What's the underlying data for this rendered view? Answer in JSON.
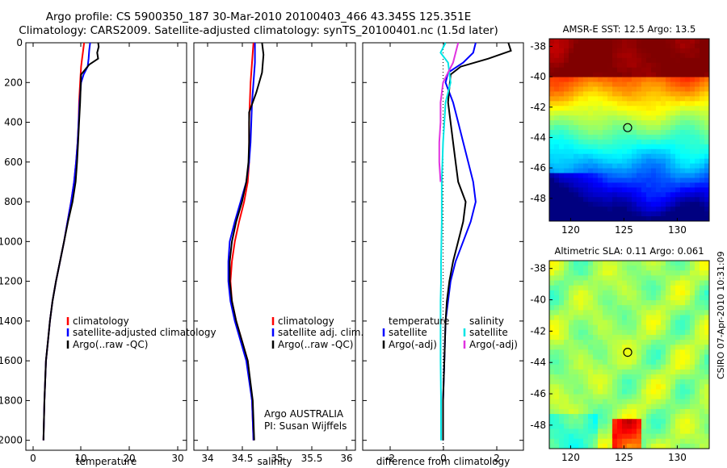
{
  "header": {
    "line1": "Argo profile: CS 5900350_187 30-Mar-2010 20100403_466 43.345S 125.351E",
    "line2": "Climatology: CARS2009. Satellite-adjusted climatology: synTS_20100401.nc (1.5d later)"
  },
  "stamp": "CSIRO 07-Apr-2010 10:31:09",
  "colors": {
    "climatology": "#ff0000",
    "satellite": "#0000ff",
    "argo": "#000000",
    "sat_diff": "#00e5e5",
    "argo_adj": "#e033e0"
  },
  "chart_data": [
    {
      "type": "line",
      "xlabel": "temperature",
      "xlim": [
        -1,
        31
      ],
      "ylim": [
        2050,
        0
      ],
      "xticks": [
        "0",
        "10",
        "20",
        "30"
      ],
      "yticks": [
        "0",
        "200",
        "400",
        "600",
        "800",
        "1000",
        "1200",
        "1400",
        "1600",
        "1800",
        "2000"
      ],
      "legend": [
        "climatology",
        "satellite-adjusted climatology",
        "Argo(..raw -QC)"
      ],
      "series": [
        {
          "key": "clim",
          "color": "#ff0000",
          "x": [
            10.6,
            10.4,
            10.2,
            10.0,
            9.9,
            9.8,
            9.6,
            9.5,
            9.3,
            9.0,
            8.6,
            8.0,
            7.3,
            6.6,
            5.8,
            5.0,
            4.3,
            3.8,
            3.4,
            3.0,
            2.7,
            2.5
          ],
          "y": [
            0,
            40,
            80,
            120,
            160,
            200,
            300,
            400,
            500,
            600,
            700,
            800,
            900,
            1000,
            1100,
            1200,
            1300,
            1400,
            1500,
            1600,
            1800,
            2000
          ]
        },
        {
          "key": "sat",
          "color": "#0000ff",
          "x": [
            11.8,
            11.6,
            11.5,
            11.3,
            10.5,
            10.0,
            9.7,
            9.5,
            9.3,
            9.0,
            8.6,
            8.0,
            7.3,
            6.6,
            5.8,
            5.0,
            4.3,
            3.8,
            3.4,
            3.0,
            2.7,
            2.5
          ],
          "y": [
            0,
            40,
            80,
            120,
            160,
            200,
            300,
            400,
            500,
            600,
            700,
            800,
            900,
            1000,
            1100,
            1200,
            1300,
            1400,
            1500,
            1600,
            1800,
            2000
          ]
        },
        {
          "key": "argo",
          "color": "#000000",
          "x": [
            13.4,
            13.5,
            13.2,
            13.4,
            11.6,
            10.0,
            9.8,
            9.6,
            9.4,
            9.2,
            8.9,
            8.3,
            7.4,
            6.6,
            5.8,
            5.0,
            4.3,
            3.8,
            3.4,
            3.0,
            2.7,
            2.5
          ],
          "y": [
            0,
            20,
            50,
            80,
            110,
            160,
            300,
            400,
            500,
            600,
            700,
            800,
            900,
            1000,
            1100,
            1200,
            1300,
            1400,
            1500,
            1600,
            1800,
            2000
          ]
        }
      ]
    },
    {
      "type": "line",
      "xlabel": "salinity",
      "xlim": [
        33.85,
        36.1
      ],
      "ylim": [
        2050,
        0
      ],
      "xticks": [
        "34",
        "34.5",
        "35",
        "35.5",
        "36"
      ],
      "legend": [
        "climatology",
        "satellite adj. clim.",
        "Argo(..raw -QC)"
      ],
      "annotation": [
        "Argo AUSTRALIA",
        "PI: Susan Wijffels"
      ],
      "series": [
        {
          "key": "clim",
          "color": "#ff0000",
          "x": [
            34.68,
            34.66,
            34.64,
            34.63,
            34.62,
            34.62,
            34.62,
            34.6,
            34.55,
            34.48,
            34.42,
            34.38,
            34.36,
            34.38,
            34.44,
            34.52,
            34.6,
            34.66,
            34.68
          ],
          "y": [
            0,
            100,
            200,
            300,
            400,
            500,
            600,
            700,
            800,
            900,
            1000,
            1100,
            1200,
            1300,
            1400,
            1500,
            1600,
            1800,
            2000
          ]
        },
        {
          "key": "sat",
          "color": "#0000ff",
          "x": [
            34.7,
            34.7,
            34.68,
            34.66,
            34.65,
            34.64,
            34.62,
            34.58,
            34.5,
            34.42,
            34.35,
            34.33,
            34.33,
            34.36,
            34.42,
            34.5,
            34.58,
            34.66,
            34.68
          ],
          "y": [
            0,
            100,
            200,
            300,
            400,
            500,
            600,
            700,
            800,
            900,
            1000,
            1100,
            1200,
            1300,
            1400,
            1500,
            1600,
            1800,
            2000
          ]
        },
        {
          "key": "argo",
          "color": "#000000",
          "x": [
            34.8,
            34.82,
            34.8,
            34.72,
            34.62,
            34.62,
            34.61,
            34.58,
            34.52,
            34.44,
            34.38,
            34.35,
            34.35,
            34.38,
            34.44,
            34.52,
            34.6,
            34.67,
            34.69
          ],
          "y": [
            0,
            60,
            150,
            250,
            350,
            500,
            600,
            700,
            800,
            900,
            1000,
            1100,
            1200,
            1300,
            1400,
            1500,
            1600,
            1800,
            2000
          ]
        }
      ]
    },
    {
      "type": "line",
      "xlabel": "difference from climatology",
      "xlim": [
        -3.2,
        3.2
      ],
      "ylim": [
        2050,
        0
      ],
      "xticks": [
        "-2",
        "0",
        "2"
      ],
      "legend": [
        "temperature",
        "satellite",
        "Argo(-adj)",
        "salinity",
        "satellite",
        "Argo(-adj)"
      ],
      "series": [
        {
          "key": "t_sat",
          "color": "#0000ff",
          "x": [
            1.3,
            1.2,
            0.8,
            0.2,
            0.1,
            0.4,
            0.6,
            0.8,
            1.0,
            1.2,
            1.3,
            1.1,
            0.8,
            0.5,
            0.3,
            0.2,
            0.1,
            0.05,
            0.0,
            0.0
          ],
          "y": [
            0,
            50,
            100,
            150,
            200,
            300,
            400,
            500,
            600,
            700,
            800,
            900,
            1000,
            1100,
            1200,
            1300,
            1400,
            1600,
            1800,
            2000
          ]
        },
        {
          "key": "t_argo",
          "color": "#000000",
          "x": [
            2.6,
            2.7,
            1.8,
            0.7,
            0.3,
            0.2,
            0.3,
            0.4,
            0.5,
            0.6,
            0.9,
            0.8,
            0.6,
            0.4,
            0.25,
            0.15,
            0.1,
            0.05,
            0.0,
            0.0
          ],
          "y": [
            0,
            40,
            80,
            120,
            160,
            300,
            400,
            500,
            600,
            700,
            800,
            900,
            1000,
            1100,
            1200,
            1300,
            1400,
            1600,
            1800,
            2000
          ]
        },
        {
          "key": "s_sat",
          "color": "#00e5e5",
          "x": [
            0.1,
            -0.1,
            0.2,
            0.3,
            0.1,
            0.05,
            0.0,
            -0.05,
            -0.05,
            -0.08,
            -0.08,
            -0.1,
            -0.1,
            -0.1,
            -0.08,
            -0.08
          ],
          "y": [
            0,
            50,
            100,
            200,
            300,
            400,
            500,
            700,
            900,
            1100,
            1200,
            1300,
            1400,
            1600,
            1800,
            2000
          ]
        },
        {
          "key": "s_argo",
          "color": "#e033e0",
          "x": [
            0.6,
            0.4,
            0.0,
            -0.1,
            -0.1,
            -0.15,
            -0.15,
            -0.1
          ],
          "y": [
            0,
            100,
            200,
            300,
            400,
            500,
            600,
            700
          ]
        }
      ]
    },
    {
      "type": "heatmap",
      "title": "AMSR-E SST: 12.5 Argo: 13.5",
      "xticks": [
        "120",
        "125",
        "130"
      ],
      "yticks": [
        "-38",
        "-40",
        "-42",
        "-44",
        "-46",
        "-48"
      ],
      "xlim": [
        118,
        133
      ],
      "ylim": [
        -49.5,
        -37.5
      ],
      "marker": {
        "lon": 125.35,
        "lat": -43.35
      }
    },
    {
      "type": "heatmap",
      "title": "Altimetric SLA: 0.11 Argo: 0.061",
      "xticks": [
        "120",
        "125",
        "130"
      ],
      "yticks": [
        "-38",
        "-40",
        "-42",
        "-44",
        "-46",
        "-48"
      ],
      "xlim": [
        118,
        133
      ],
      "ylim": [
        -49.5,
        -37.5
      ],
      "marker": {
        "lon": 125.35,
        "lat": -43.35
      }
    }
  ]
}
